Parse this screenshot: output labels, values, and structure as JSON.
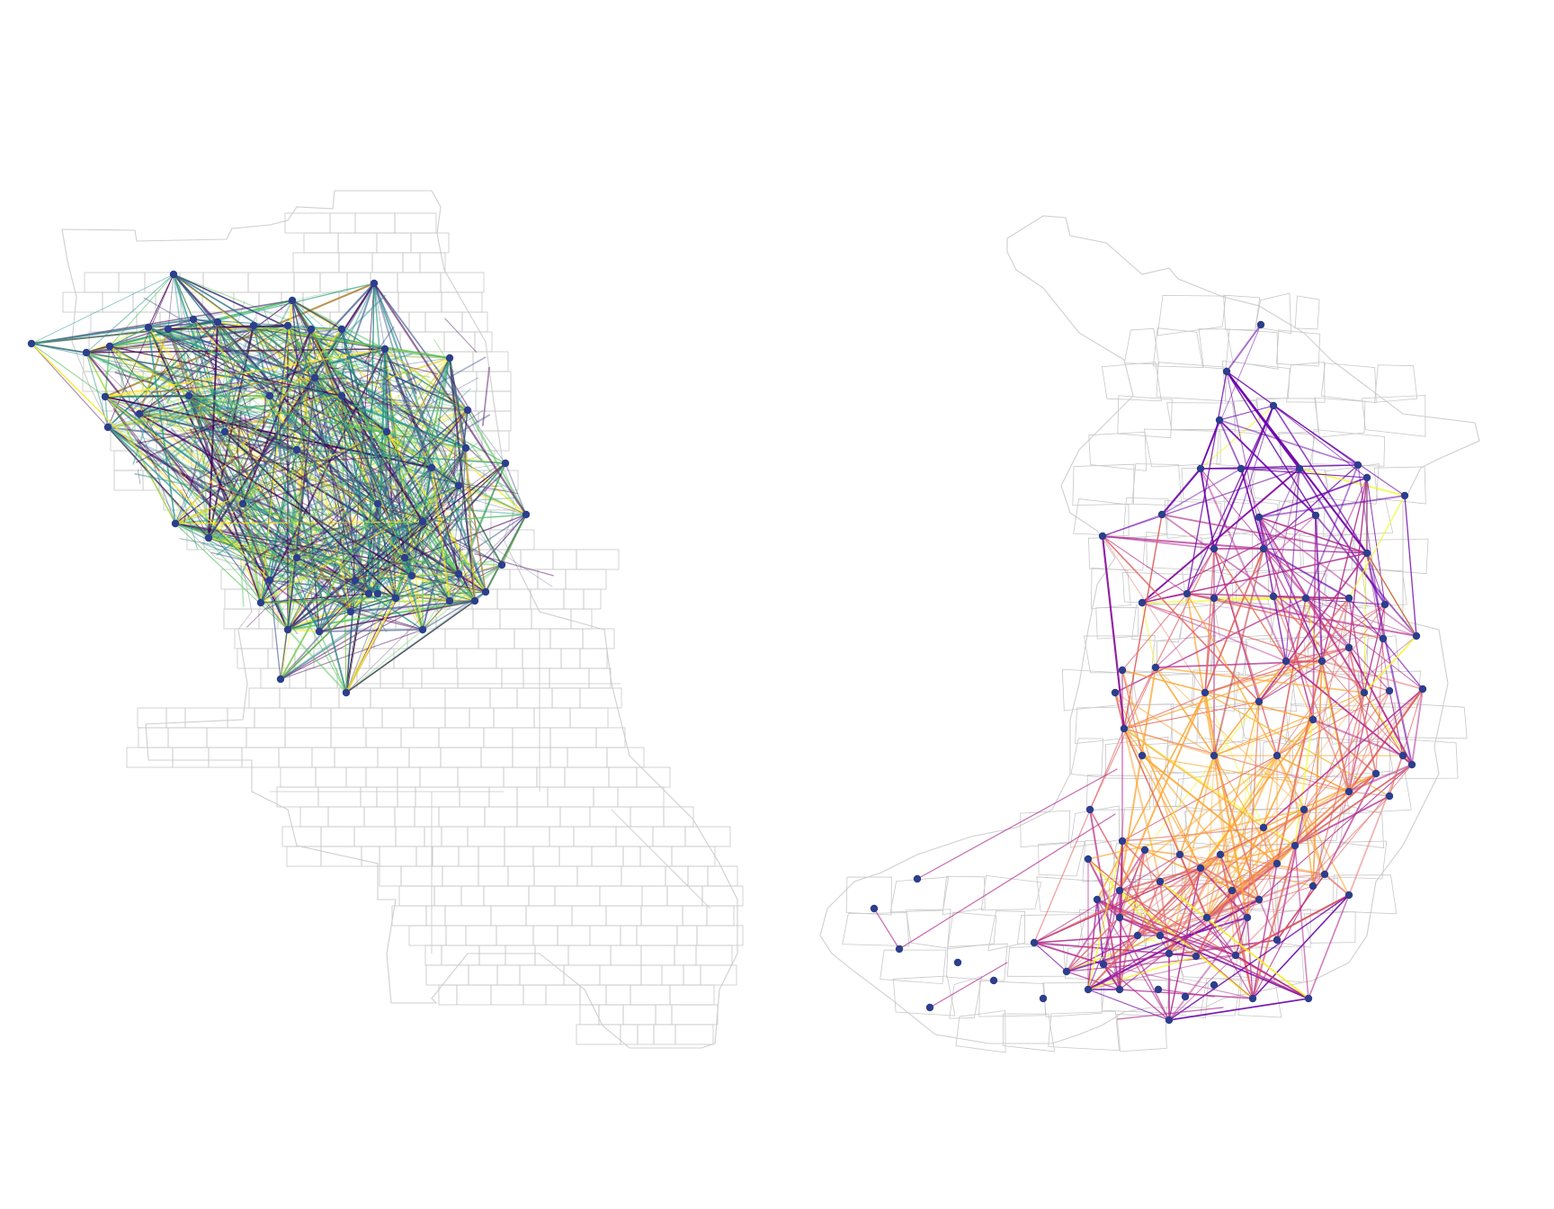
{
  "figure": {
    "panels": [
      {
        "id": "left",
        "region": "city-grid",
        "edge_colormap": "viridis",
        "edge_colors": [
          "#440154",
          "#3b528b",
          "#21918c",
          "#5ec962",
          "#fde725"
        ],
        "node_color": "#2c3e8c"
      },
      {
        "id": "right",
        "region": "island-city",
        "edge_colormap": "plasma",
        "edge_colors": [
          "#0d0887",
          "#6a00a8",
          "#b12a90",
          "#e16462",
          "#fca636",
          "#f0f921"
        ],
        "node_color": "#2c3e8c"
      }
    ],
    "background": "#ffffff",
    "tract_stroke": "#c8c8c8"
  }
}
